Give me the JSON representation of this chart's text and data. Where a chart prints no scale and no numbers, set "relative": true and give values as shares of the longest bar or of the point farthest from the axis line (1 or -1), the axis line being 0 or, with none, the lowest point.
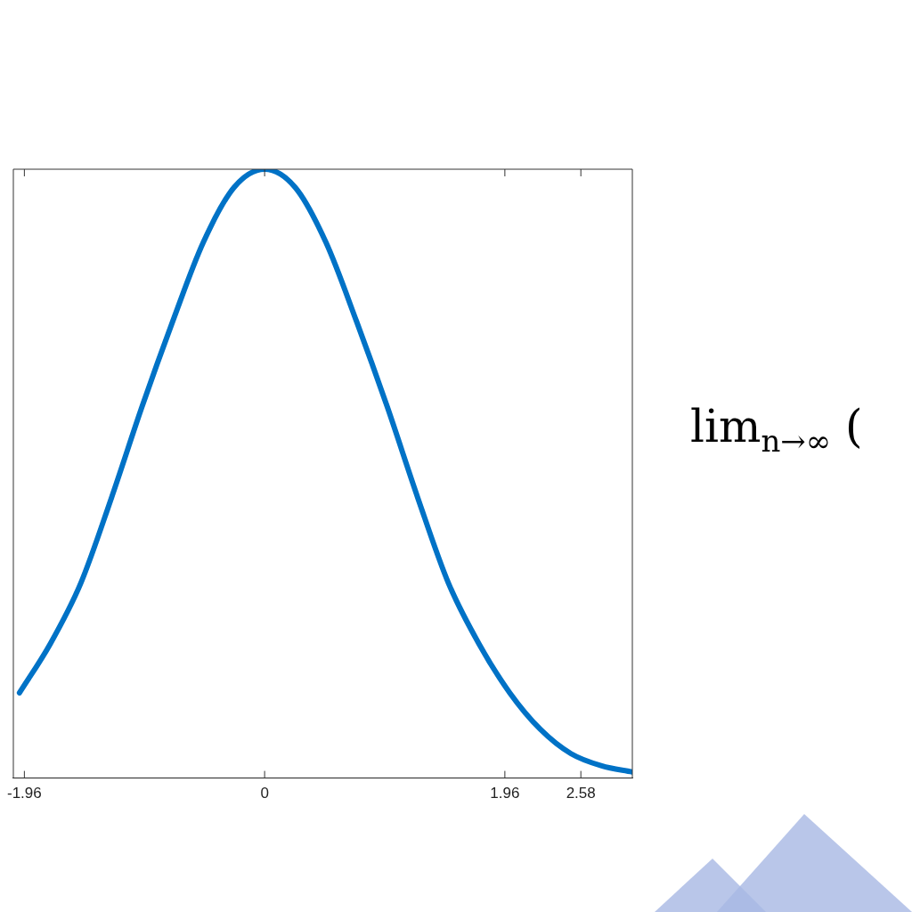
{
  "chart_data": {
    "type": "line",
    "relative": true,
    "x": [
      -2,
      -1.75,
      -1.5,
      -1.25,
      -1,
      -0.75,
      -0.5,
      -0.25,
      0,
      0.25,
      0.5,
      0.75,
      1,
      1.25,
      1.5,
      1.75,
      2,
      2.25,
      2.5,
      2.75,
      3
    ],
    "series": [
      {
        "color": "#0072c6",
        "values": [
          0.14,
          0.22,
          0.32,
          0.46,
          0.61,
          0.75,
          0.88,
          0.97,
          1,
          0.97,
          0.88,
          0.75,
          0.61,
          0.46,
          0.32,
          0.22,
          0.14,
          0.08,
          0.04,
          0.02,
          0.01
        ]
      }
    ],
    "xlim": [
      -2.05,
      3
    ],
    "xticks": [
      -1.96,
      0,
      1.96,
      2.58
    ],
    "tick_labels": "x",
    "grid": false,
    "legend": false,
    "marker": "none",
    "line_style": "solid",
    "annotations": [
      "lim$_{n→∞}$ ("
    ]
  }
}
